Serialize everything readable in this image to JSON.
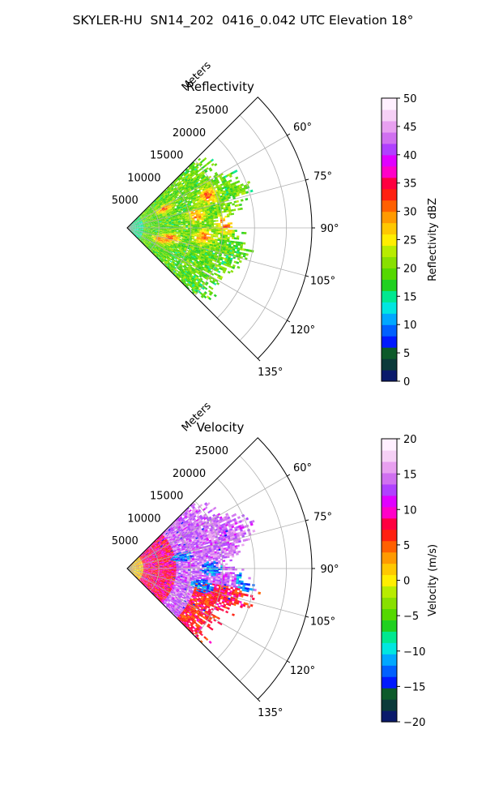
{
  "figure_title": "SKYLER-HU  SN14_202  0416_0.042 UTC Elevation 18°",
  "chart_data": [
    {
      "type": "heatmap",
      "projection": "polar-sector",
      "title": "Reflectivity",
      "radial_label": "Meters",
      "azimuth_range_deg": [
        45,
        135
      ],
      "range_max_m": 29000,
      "radial_ticks": [
        5000,
        10000,
        15000,
        20000,
        25000
      ],
      "radial_tick_labels": [
        "5000",
        "10000",
        "15000",
        "20000",
        "25000"
      ],
      "azimuth_ticks": [
        60,
        75,
        90,
        105,
        120,
        135
      ],
      "azimuth_tick_labels": [
        "60°",
        "75°",
        "90°",
        "105°",
        "120°",
        "135°"
      ],
      "echo_extent_m": 22000,
      "grid": true,
      "colorbar": {
        "label": "Reflectivity dBZ",
        "range": [
          0,
          50
        ],
        "ticks": [
          0,
          5,
          10,
          15,
          20,
          25,
          30,
          35,
          40,
          45,
          50
        ],
        "tick_labels": [
          "0",
          "5",
          "10",
          "15",
          "20",
          "25",
          "30",
          "35",
          "40",
          "45",
          "50"
        ],
        "colors": [
          "#0a1a6b",
          "#0b3a3a",
          "#0d5a2a",
          "#0019ff",
          "#0060ff",
          "#00a8ff",
          "#00e6e0",
          "#00e890",
          "#20d020",
          "#55d800",
          "#88e000",
          "#b8ec00",
          "#ffee00",
          "#ffc800",
          "#ff9a00",
          "#ff6000",
          "#ff2010",
          "#ff0040",
          "#ff00c8",
          "#e000ff",
          "#b040ff",
          "#d070f0",
          "#e8a0f0",
          "#f6d0f6",
          "#fff0ff"
        ]
      },
      "field_summary": "mostly 15-25 dBZ with local cores near 30-35 dBZ"
    },
    {
      "type": "heatmap",
      "projection": "polar-sector",
      "title": "Velocity",
      "radial_label": "Meters",
      "azimuth_range_deg": [
        45,
        135
      ],
      "range_max_m": 29000,
      "radial_ticks": [
        5000,
        10000,
        15000,
        20000,
        25000
      ],
      "radial_tick_labels": [
        "5000",
        "10000",
        "15000",
        "20000",
        "25000"
      ],
      "azimuth_ticks": [
        60,
        75,
        90,
        105,
        120,
        135
      ],
      "azimuth_tick_labels": [
        "60°",
        "75°",
        "90°",
        "105°",
        "120°",
        "135°"
      ],
      "echo_extent_m": 22000,
      "grid": true,
      "colorbar": {
        "label": "Velocity (m/s)",
        "range": [
          -20,
          20
        ],
        "ticks": [
          -20,
          -15,
          -10,
          -5,
          0,
          5,
          10,
          15,
          20
        ],
        "tick_labels": [
          "−20",
          "−15",
          "−10",
          "−5",
          "0",
          "5",
          "10",
          "15",
          "20"
        ],
        "colors": [
          "#0a1a6b",
          "#0b3a3a",
          "#0d5a2a",
          "#0019ff",
          "#0060ff",
          "#00a8ff",
          "#00e6e0",
          "#00e890",
          "#20d020",
          "#55d800",
          "#88e000",
          "#b8ec00",
          "#ffee00",
          "#ffc800",
          "#ff9a00",
          "#ff6000",
          "#ff2010",
          "#ff0040",
          "#ff00c8",
          "#e000ff",
          "#b040ff",
          "#d070f0",
          "#e8a0f0",
          "#f6d0f6",
          "#fff0ff"
        ]
      },
      "field_summary": "mostly 10-20 m/s outbound with a -10 to -15 m/s inbound patch"
    }
  ]
}
